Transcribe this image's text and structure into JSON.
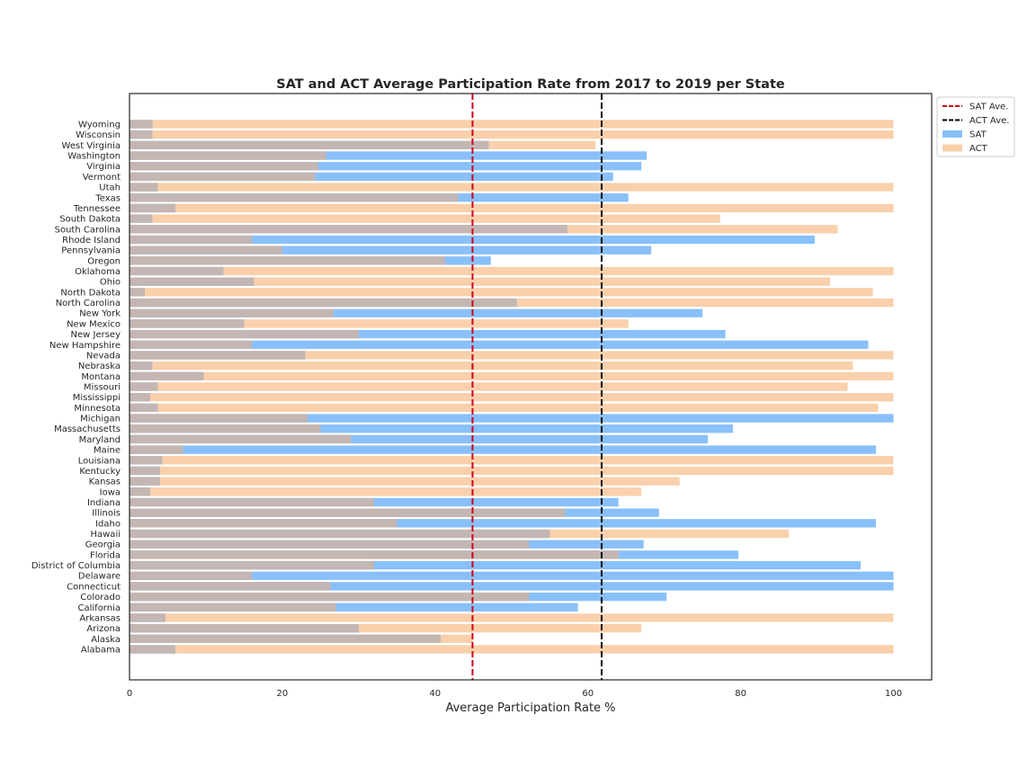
{
  "chart_data": {
    "type": "bar",
    "orientation": "horizontal",
    "title": "SAT and ACT Average Participation Rate from 2017 to 2019 per State",
    "xlabel": "Average Participation Rate %",
    "ylabel": "",
    "xlim": [
      0,
      105
    ],
    "xticks": [
      "0",
      "20",
      "40",
      "60",
      "80",
      "100"
    ],
    "grid": false,
    "legend_position": "top-right, outside plot",
    "categories": [
      "Alabama",
      "Alaska",
      "Arizona",
      "Arkansas",
      "California",
      "Colorado",
      "Connecticut",
      "Delaware",
      "District of Columbia",
      "Florida",
      "Georgia",
      "Hawaii",
      "Idaho",
      "Illinois",
      "Indiana",
      "Iowa",
      "Kansas",
      "Kentucky",
      "Louisiana",
      "Maine",
      "Maryland",
      "Massachusetts",
      "Michigan",
      "Minnesota",
      "Mississippi",
      "Missouri",
      "Montana",
      "Nebraska",
      "Nevada",
      "New Hampshire",
      "New Jersey",
      "New Mexico",
      "New York",
      "North Carolina",
      "North Dakota",
      "Ohio",
      "Oklahoma",
      "Oregon",
      "Pennsylvania",
      "Rhode Island",
      "South Carolina",
      "South Dakota",
      "Tennessee",
      "Texas",
      "Utah",
      "Vermont",
      "Virginia",
      "Washington",
      "West Virginia",
      "Wisconsin",
      "Wyoming"
    ],
    "series": [
      {
        "name": "SAT",
        "color": "#89c0f9",
        "values": [
          6.0,
          40.7,
          30.0,
          4.7,
          58.7,
          70.3,
          100,
          100,
          95.7,
          79.7,
          67.3,
          55.0,
          97.7,
          69.3,
          64.0,
          2.7,
          4.0,
          4.0,
          4.3,
          97.7,
          75.7,
          79.0,
          100,
          3.7,
          2.7,
          3.7,
          9.7,
          3.0,
          23.0,
          96.7,
          78.0,
          15.0,
          75.0,
          50.7,
          2.0,
          16.3,
          12.3,
          47.3,
          68.3,
          89.7,
          57.3,
          3.0,
          6.0,
          65.3,
          3.7,
          63.3,
          67.0,
          67.7,
          47.0,
          3.0,
          3.0
        ]
      },
      {
        "name": "ACT",
        "color": "#f9d0ab",
        "values": [
          100,
          45.0,
          67.0,
          100,
          27.0,
          52.3,
          26.3,
          16.0,
          32.0,
          64.0,
          52.3,
          86.3,
          35.0,
          57.0,
          32.0,
          67.0,
          72.0,
          100,
          100,
          7.0,
          29.0,
          25.0,
          23.3,
          98.0,
          100,
          94.0,
          100,
          94.7,
          100,
          16.0,
          30.0,
          65.3,
          26.7,
          100,
          97.3,
          91.7,
          100,
          41.3,
          20.0,
          16.0,
          92.7,
          77.3,
          100,
          43.0,
          100,
          24.3,
          24.7,
          25.7,
          61.0,
          100,
          100
        ]
      }
    ],
    "reference_lines": [
      {
        "name": "SAT Ave.",
        "value": 44.9,
        "color": "#d0021b",
        "style": "dashed"
      },
      {
        "name": "ACT Ave.",
        "value": 61.8,
        "color": "#000000",
        "style": "dashed"
      }
    ],
    "overlap_color": "#c4b6b2"
  }
}
